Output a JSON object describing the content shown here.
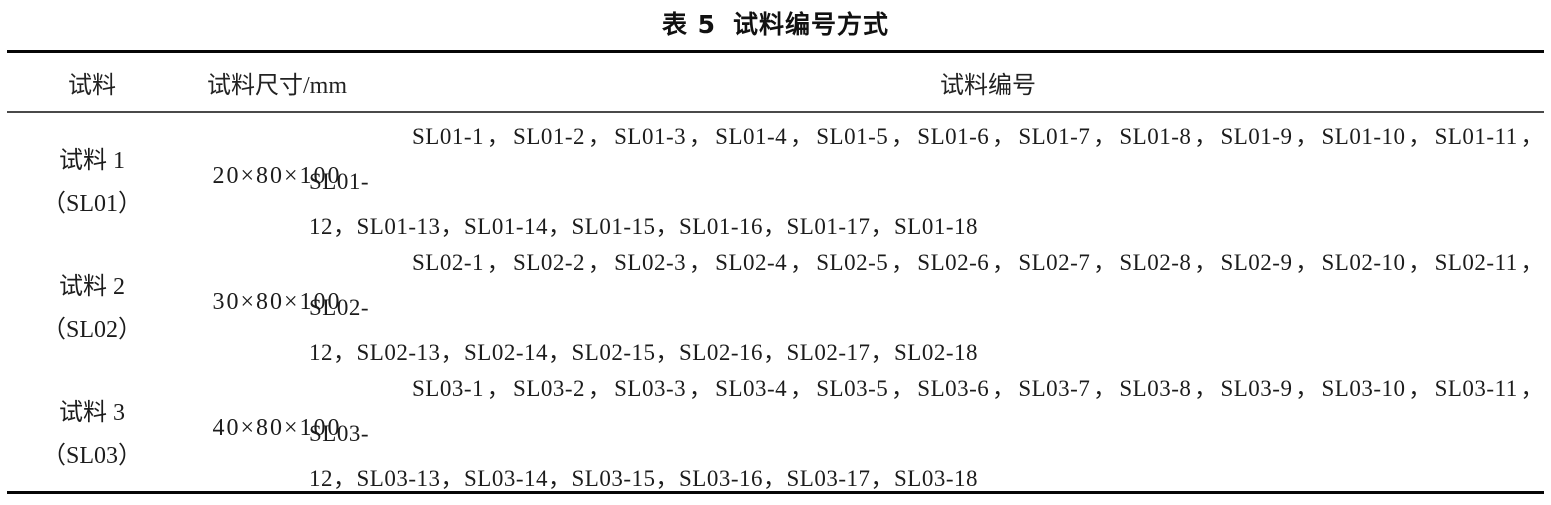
{
  "page": {
    "background": "#ffffff",
    "text_color": "#1c1c1c",
    "rule_color": "#060606"
  },
  "table": {
    "title_index": "表 5",
    "title_text": "试料编号方式",
    "header": {
      "specimen": "试料",
      "size": "试料尺寸/mm",
      "numbering": "试料编号"
    },
    "rows": [
      {
        "specimen_line1": "试料 1",
        "specimen_line2": "（SL01）",
        "size": "20×80×100",
        "ids_line1": "SL01-1，SL01-2，SL01-3，SL01-4，SL01-5，SL01-6，SL01-7，SL01-8，SL01-9，SL01-10，SL01-11，SL01-",
        "ids_line2": "12，SL01-13，SL01-14，SL01-15，SL01-16，SL01-17，SL01-18"
      },
      {
        "specimen_line1": "试料 2",
        "specimen_line2": "（SL02）",
        "size": "30×80×100",
        "ids_line1": "SL02-1，SL02-2，SL02-3，SL02-4，SL02-5，SL02-6，SL02-7，SL02-8，SL02-9，SL02-10，SL02-11，SL02-",
        "ids_line2": "12，SL02-13，SL02-14，SL02-15，SL02-16，SL02-17，SL02-18"
      },
      {
        "specimen_line1": "试料 3",
        "specimen_line2": "（SL03）",
        "size": "40×80×100",
        "ids_line1": "SL03-1，SL03-2，SL03-3，SL03-4，SL03-5，SL03-6，SL03-7，SL03-8，SL03-9，SL03-10，SL03-11，SL03-",
        "ids_line2": "12，SL03-13，SL03-14，SL03-15，SL03-16，SL03-17，SL03-18"
      }
    ]
  }
}
